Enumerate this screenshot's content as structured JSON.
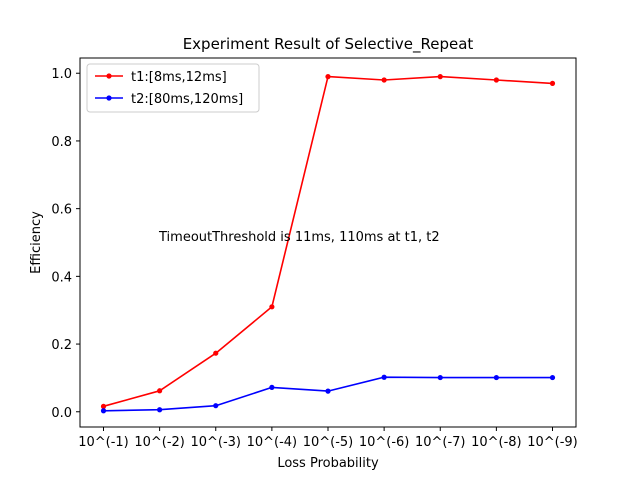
{
  "chart_data": {
    "type": "line",
    "title": "Experiment Result of Selective_Repeat",
    "xlabel": "Loss Probability",
    "ylabel": "Efficiency",
    "categories": [
      "10^(-1)",
      "10^(-2)",
      "10^(-3)",
      "10^(-4)",
      "10^(-5)",
      "10^(-6)",
      "10^(-7)",
      "10^(-8)",
      "10^(-9)"
    ],
    "ylim": [
      -0.045,
      1.045
    ],
    "yticks": [
      0.0,
      0.2,
      0.4,
      0.6,
      0.8,
      1.0
    ],
    "ytick_labels": [
      "0.0",
      "0.2",
      "0.4",
      "0.6",
      "0.8",
      "1.0"
    ],
    "grid": false,
    "legend_position": "top-left",
    "series": [
      {
        "name": "t1:[8ms,12ms]",
        "color": "#ff0000",
        "values": [
          0.016,
          0.062,
          0.173,
          0.31,
          0.99,
          0.98,
          0.99,
          0.98,
          0.97
        ]
      },
      {
        "name": "t2:[80ms,120ms]",
        "color": "#0000ff",
        "values": [
          0.003,
          0.006,
          0.018,
          0.072,
          0.061,
          0.102,
          0.101,
          0.101,
          0.101
        ]
      }
    ],
    "annotation": "TimeoutThreshold is 11ms, 110ms at t1, t2"
  }
}
